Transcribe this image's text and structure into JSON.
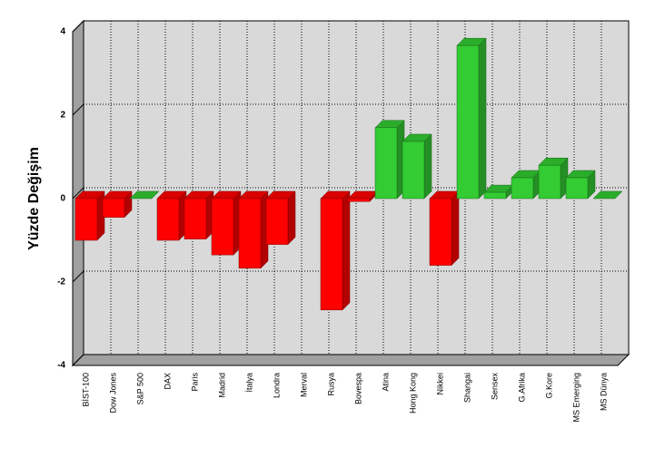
{
  "chart_data": {
    "type": "bar3d",
    "y_label": "Yüzde Değişim",
    "categories": [
      "BİST-100",
      "Dow Jones",
      "S&P 500",
      "DAX",
      "Paris",
      "Madrid",
      "İtalya",
      "Londra",
      "Merval",
      "Rusya",
      "Bovespa",
      "Atina",
      "Hong Kong",
      "Nikkei",
      "Shangai",
      "Sensex",
      "G.Afrika",
      "G.Kore",
      "MS Emerging",
      "MS Dünya"
    ],
    "values": [
      -1.0,
      -0.45,
      0,
      -1.0,
      -0.97,
      -1.35,
      -1.67,
      -1.1,
      null,
      -2.67,
      -0.07,
      1.7,
      1.37,
      -1.6,
      3.67,
      0.15,
      0.5,
      0.8,
      0.5,
      0
    ],
    "color_positive": "#33cc33",
    "color_negative": "#ff0000",
    "ylim": [
      -4,
      4
    ],
    "yticks": [
      4,
      2,
      0,
      -2,
      -4
    ],
    "grid": true
  }
}
